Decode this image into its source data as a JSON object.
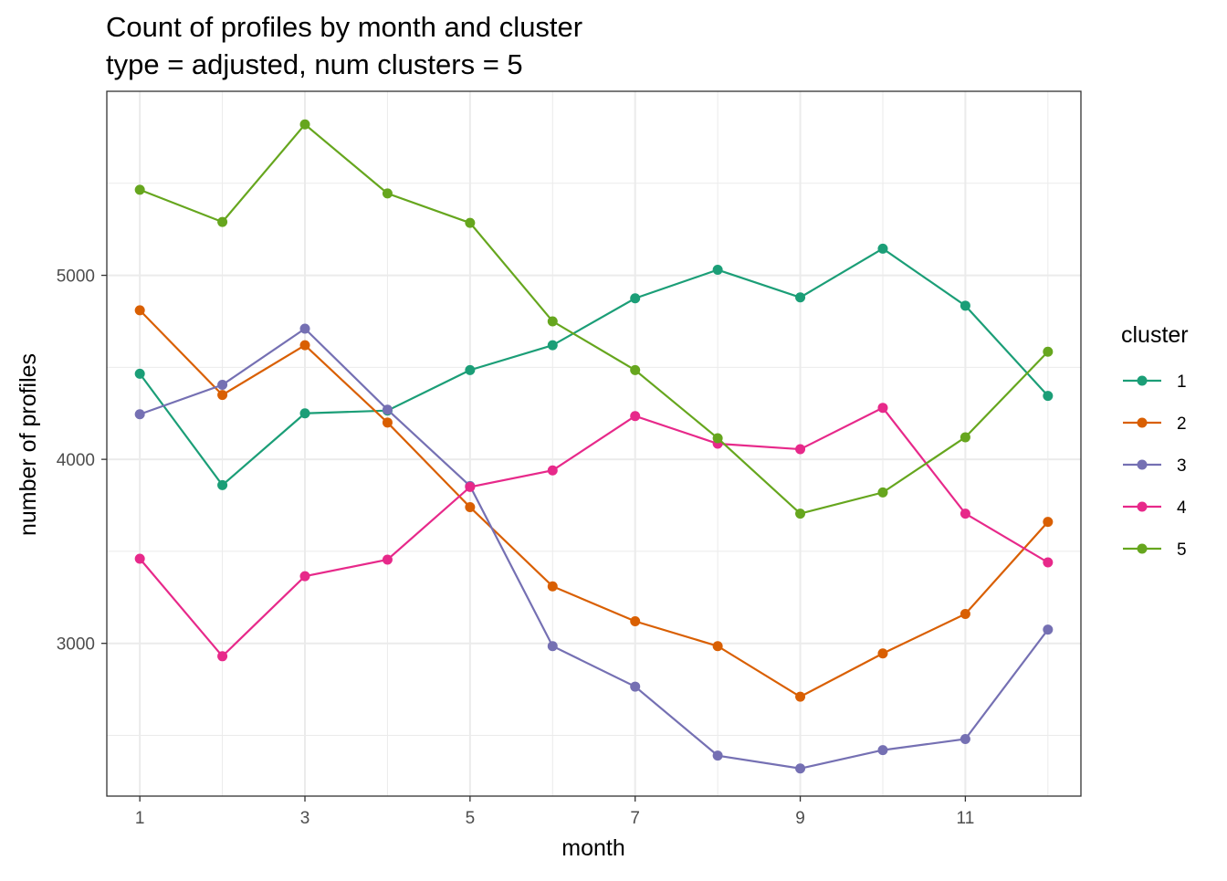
{
  "chart_data": {
    "type": "line",
    "title": "Count of profiles by month and cluster",
    "subtitle": "type = adjusted, num clusters = 5",
    "xlabel": "month",
    "ylabel": "number of profiles",
    "x": [
      1,
      2,
      3,
      4,
      5,
      6,
      7,
      8,
      9,
      10,
      11,
      12
    ],
    "x_ticks": [
      1,
      3,
      5,
      7,
      9,
      11
    ],
    "y_ticks": [
      3000,
      4000,
      5000
    ],
    "xlim": [
      0.6,
      12.4
    ],
    "ylim": [
      2170,
      6000
    ],
    "grid": true,
    "legend": {
      "title": "cluster",
      "position": "right"
    },
    "series": [
      {
        "name": "1",
        "color": "#1b9e77",
        "values": [
          4465,
          3860,
          4250,
          4265,
          4485,
          4620,
          4875,
          5030,
          4880,
          5145,
          4835,
          4345
        ]
      },
      {
        "name": "2",
        "color": "#d95f02",
        "values": [
          4810,
          4350,
          4620,
          4200,
          3740,
          3310,
          3120,
          2985,
          2710,
          2945,
          3160,
          3660
        ]
      },
      {
        "name": "3",
        "color": "#7570b3",
        "values": [
          4245,
          4405,
          4710,
          4270,
          3855,
          2985,
          2765,
          2390,
          2320,
          2420,
          2480,
          3075
        ]
      },
      {
        "name": "4",
        "color": "#e7298a",
        "values": [
          3460,
          2930,
          3365,
          3455,
          3850,
          3940,
          4235,
          4085,
          4055,
          4280,
          3705,
          3440
        ]
      },
      {
        "name": "5",
        "color": "#66a61e",
        "values": [
          5465,
          5290,
          5820,
          5445,
          5285,
          4750,
          4485,
          4115,
          3705,
          3820,
          4120,
          4585
        ]
      }
    ]
  }
}
